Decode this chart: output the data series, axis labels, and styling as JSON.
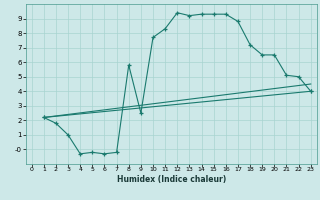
{
  "xlabel": "Humidex (Indice chaleur)",
  "background_color": "#cde8e8",
  "line_color": "#1a7a6e",
  "xlim": [
    -0.5,
    23.5
  ],
  "ylim": [
    -1.0,
    10.0
  ],
  "xticks": [
    0,
    1,
    2,
    3,
    4,
    5,
    6,
    7,
    8,
    9,
    10,
    11,
    12,
    13,
    14,
    15,
    16,
    17,
    18,
    19,
    20,
    21,
    22,
    23
  ],
  "yticks": [
    0,
    1,
    2,
    3,
    4,
    5,
    6,
    7,
    8,
    9
  ],
  "curve1_x": [
    1,
    2,
    3,
    4,
    5,
    6,
    7,
    8,
    9,
    10,
    11,
    12,
    13,
    14,
    15,
    16,
    17,
    18,
    19,
    20,
    21,
    22,
    23
  ],
  "curve1_y": [
    2.2,
    1.8,
    1.0,
    -0.3,
    -0.2,
    -0.3,
    -0.2,
    5.8,
    2.5,
    7.7,
    8.3,
    9.4,
    9.2,
    9.3,
    9.3,
    9.3,
    8.8,
    7.2,
    6.5,
    6.5,
    5.1,
    5.0,
    4.0
  ],
  "curve2_x": [
    1,
    23
  ],
  "curve2_y": [
    2.2,
    4.0
  ],
  "curve3_x": [
    1,
    23
  ],
  "curve3_y": [
    2.2,
    4.5
  ]
}
